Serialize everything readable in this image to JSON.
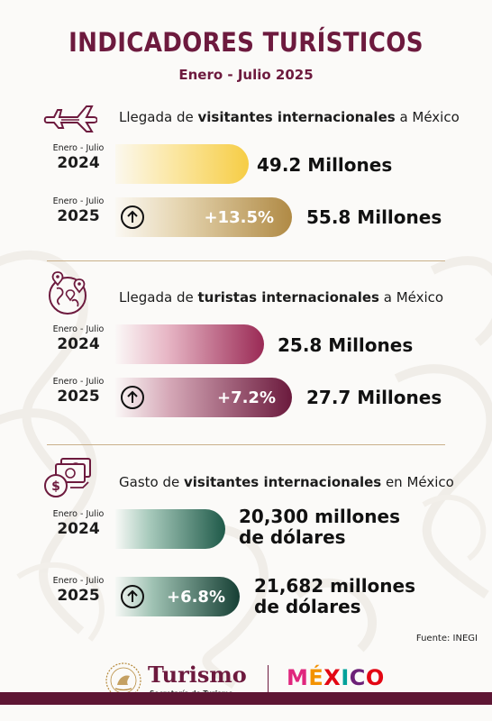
{
  "header": {
    "title": "INDICADORES TURÍSTICOS",
    "subtitle": "Enero - Julio 2025"
  },
  "sections": [
    {
      "heading_parts": [
        "Llegada de ",
        "visitantes internacionales",
        " a México"
      ],
      "icon": "airplane-icon",
      "rows": [
        {
          "period": "Enero - Julio",
          "year": "2024",
          "value": "49.2 Millones"
        },
        {
          "period": "Enero - Julio",
          "year": "2025",
          "value": "55.8 Millones",
          "change": "+13.5%"
        }
      ]
    },
    {
      "heading_parts": [
        "Llegada de ",
        "turistas internacionales",
        " a México"
      ],
      "icon": "globe-pins-icon",
      "rows": [
        {
          "period": "Enero - Julio",
          "year": "2024",
          "value": "25.8 Millones"
        },
        {
          "period": "Enero - Julio",
          "year": "2025",
          "value": "27.7 Millones",
          "change": "+7.2%"
        }
      ]
    },
    {
      "heading_parts": [
        "Gasto de ",
        "visitantes internacionales",
        " en México"
      ],
      "icon": "money-icon",
      "rows": [
        {
          "period": "Enero - Julio",
          "year": "2024",
          "value_line1": "20,300 millones",
          "value_line2": "de dólares"
        },
        {
          "period": "Enero - Julio",
          "year": "2025",
          "value_line1": "21,682 millones",
          "value_line2": "de dólares",
          "change": "+6.8%"
        }
      ]
    }
  ],
  "source": "Fuente: INEGI",
  "footer": {
    "turismo": "Turismo",
    "secretaria": "Secretaría de Turismo",
    "mexico_letters": [
      "M",
      "É",
      "X",
      "I",
      "C",
      "O"
    ],
    "mexico_colors": [
      "#e0267d",
      "#f39200",
      "#e30613",
      "#00a19a",
      "#6d2077",
      "#e30613"
    ]
  },
  "colors": {
    "primary": "#6d1a3e",
    "gold": "#b68a3c",
    "wine": "#7a1f45",
    "green": "#1f5a49"
  }
}
